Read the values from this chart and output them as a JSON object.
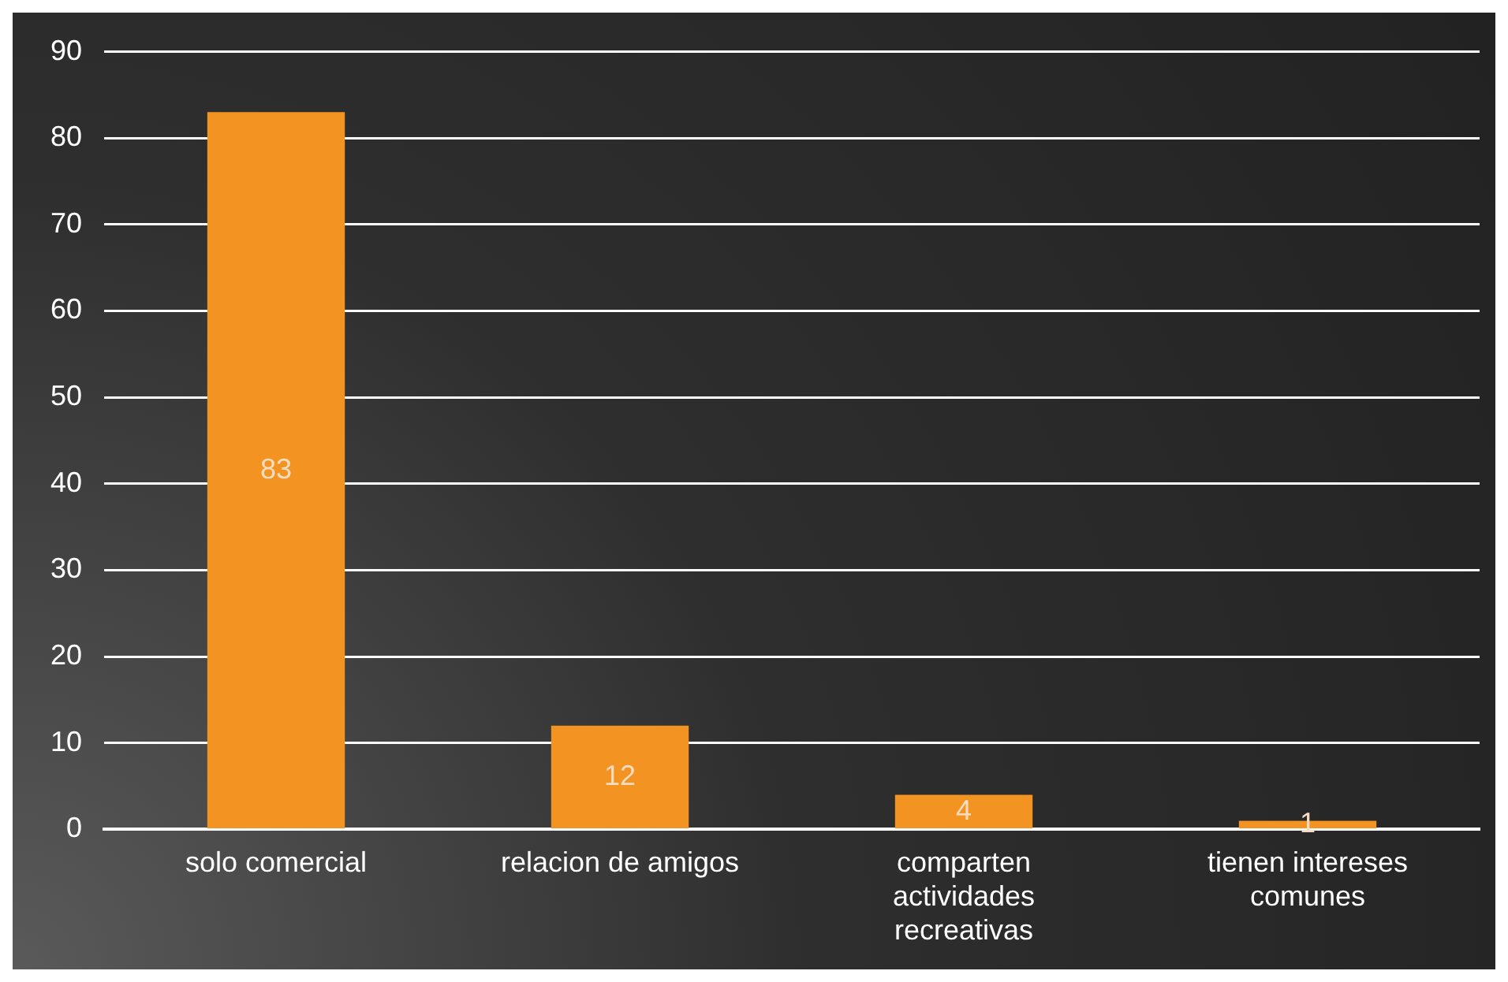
{
  "chart_data": {
    "type": "bar",
    "categories": [
      "solo comercial",
      "relacion de amigos",
      "comparten actividades recreativas",
      "tienen intereses comunes"
    ],
    "values": [
      83,
      12,
      4,
      1
    ],
    "color": "#f39422",
    "ylim": [
      0,
      90
    ],
    "yticks": [
      0,
      10,
      20,
      30,
      40,
      50,
      60,
      70,
      80,
      90
    ],
    "grid": "y",
    "legend": false,
    "data_labels": true
  }
}
